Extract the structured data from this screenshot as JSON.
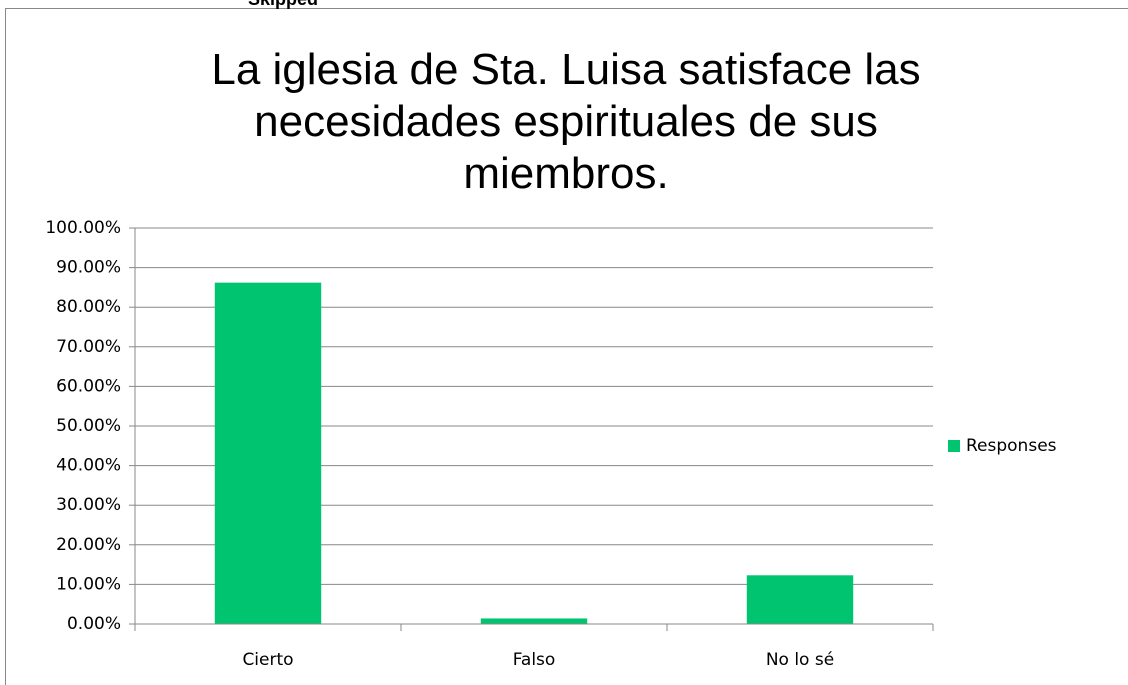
{
  "top_text": "Skipped",
  "chart_data": {
    "type": "bar",
    "title": "La iglesia de Sta. Luisa satisface las necesidades espirituales de sus miembros.",
    "categories": [
      "Cierto",
      "Falso",
      "No lo sé"
    ],
    "series": [
      {
        "name": "Responses",
        "color": "#00c46f",
        "values": [
          86.2,
          1.4,
          12.3
        ]
      }
    ],
    "ylim": [
      0,
      100
    ],
    "yticks": [
      {
        "value": 0,
        "label": "0.00%"
      },
      {
        "value": 10,
        "label": "10.00%"
      },
      {
        "value": 20,
        "label": "20.00%"
      },
      {
        "value": 30,
        "label": "30.00%"
      },
      {
        "value": 40,
        "label": "40.00%"
      },
      {
        "value": 50,
        "label": "50.00%"
      },
      {
        "value": 60,
        "label": "60.00%"
      },
      {
        "value": 70,
        "label": "70.00%"
      },
      {
        "value": 80,
        "label": "80.00%"
      },
      {
        "value": 90,
        "label": "90.00%"
      },
      {
        "value": 100,
        "label": "100.00%"
      }
    ],
    "grid": true,
    "legend": "right"
  }
}
